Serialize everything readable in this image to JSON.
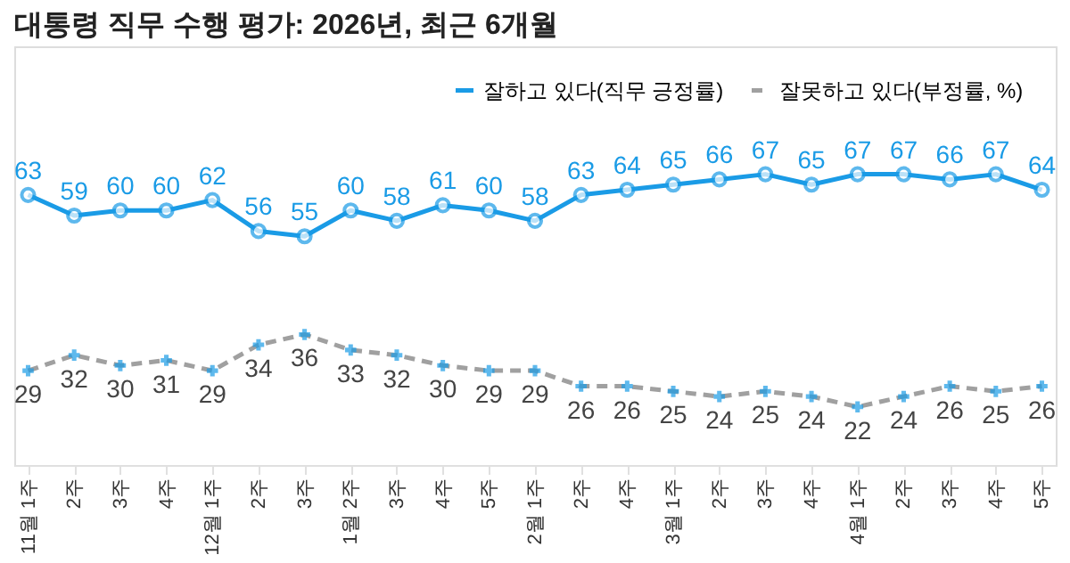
{
  "chart_data": {
    "type": "line",
    "title": "대통령 직무 수행 평가: 2026년, 최근 6개월",
    "categories": [
      "11월 1주",
      "2주",
      "3주",
      "4주",
      "12월 1주",
      "2주",
      "3주",
      "1월 2주",
      "3주",
      "4주",
      "5주",
      "2월 1주",
      "2주",
      "4주",
      "3월 1주",
      "2주",
      "3주",
      "4주",
      "4월 1주",
      "2주",
      "3주",
      "4주",
      "5주"
    ],
    "series": [
      {
        "name": "잘하고 있다(직무 긍정률)",
        "color": "#1a9be6",
        "marker": "circle",
        "line_style": "solid",
        "values": [
          63,
          59,
          60,
          60,
          62,
          56,
          55,
          60,
          58,
          61,
          60,
          58,
          63,
          64,
          65,
          66,
          67,
          65,
          67,
          67,
          66,
          67,
          64
        ]
      },
      {
        "name": "잘못하고 있다(부정률, %)",
        "color": "#a0a0a0",
        "marker": "cross",
        "line_style": "dashed",
        "values": [
          29,
          32,
          30,
          31,
          29,
          34,
          36,
          33,
          32,
          30,
          29,
          29,
          26,
          26,
          25,
          24,
          25,
          24,
          22,
          24,
          26,
          25,
          26
        ]
      }
    ],
    "data_labels": true,
    "legend": "top right",
    "grid": false,
    "tick_labels": "x"
  }
}
